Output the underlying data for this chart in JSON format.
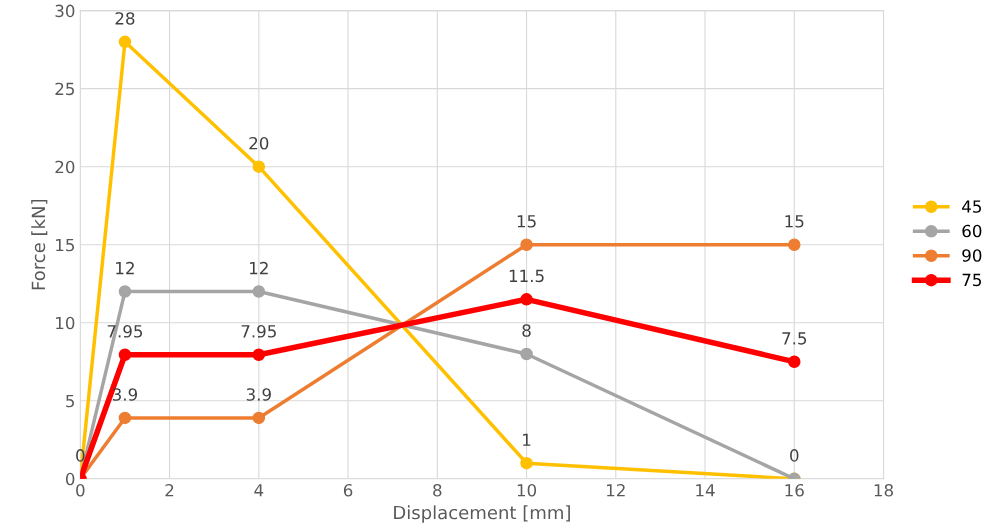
{
  "chart_data": {
    "type": "line",
    "xlabel": "Displacement [mm]",
    "ylabel": "Force [kN]",
    "xlim": [
      0,
      18
    ],
    "xticks": [
      0,
      2,
      4,
      6,
      8,
      10,
      12,
      14,
      16,
      18
    ],
    "ylim": [
      0,
      30
    ],
    "yticks": [
      0,
      5,
      10,
      15,
      20,
      25,
      30
    ],
    "grid": true,
    "legend": "right",
    "marker": "circle",
    "series": [
      {
        "name": "45",
        "color": "#ffc000",
        "x": [
          0,
          1,
          4,
          10,
          16
        ],
        "values": [
          0,
          28,
          20,
          1,
          0
        ],
        "value_labels": [
          "0",
          "28",
          "20",
          "1",
          null
        ]
      },
      {
        "name": "60",
        "color": "#a5a5a5",
        "x": [
          0,
          1,
          4,
          10,
          16
        ],
        "values": [
          0,
          12,
          12,
          8,
          0
        ],
        "value_labels": [
          null,
          "12",
          "12",
          "8",
          "0"
        ]
      },
      {
        "name": "90",
        "color": "#ed7d31",
        "x": [
          0,
          1,
          4,
          10,
          16
        ],
        "values": [
          0,
          3.9,
          3.9,
          15,
          15
        ],
        "value_labels": [
          null,
          "3.9",
          "3.9",
          "15",
          "15"
        ]
      },
      {
        "name": "75",
        "color": "#ff0000",
        "x": [
          0,
          1,
          4,
          10,
          16
        ],
        "values": [
          0,
          7.95,
          7.95,
          11.5,
          7.5
        ],
        "value_labels": [
          null,
          "7.95",
          "7.95",
          "11.5",
          "7.5"
        ]
      }
    ]
  }
}
